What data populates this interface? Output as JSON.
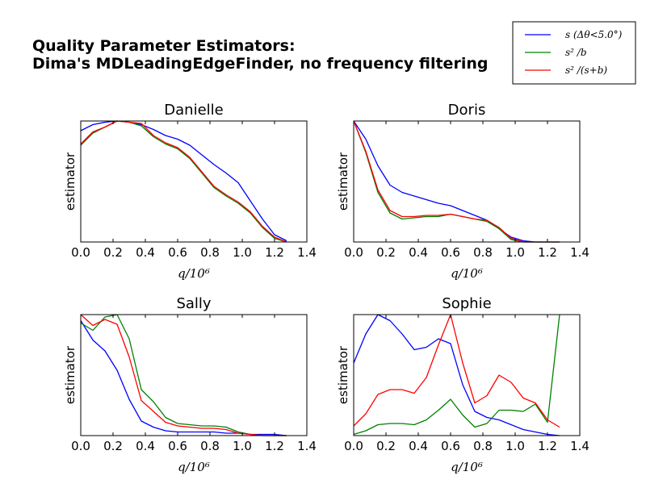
{
  "figure": {
    "title_lines": [
      "Quality Parameter Estimators:",
      "Dima's MDLeadingEdgeFinder, no frequency filtering"
    ]
  },
  "legend": {
    "placement": "top-right",
    "entries": [
      {
        "label": "s (Δθ<5.0°)",
        "color": "#0000ff"
      },
      {
        "label": "s² /b",
        "color": "#008000"
      },
      {
        "label": "s² /(s+b)",
        "color": "#ff0000"
      }
    ]
  },
  "chart_data": [
    {
      "type": "line",
      "title": "Danielle",
      "xlabel": "q/10⁶",
      "ylabel": "estimator",
      "xlim": [
        0.0,
        1.4
      ],
      "ylim": [
        0.0,
        1.0
      ],
      "xticks": [
        "0.0",
        "0.2",
        "0.4",
        "0.6",
        "0.8",
        "1.0",
        "1.2",
        "1.4"
      ],
      "yticks_visible": false,
      "series": [
        {
          "color": "#0000ff",
          "x": [
            0.0,
            0.075,
            0.15,
            0.225,
            0.3,
            0.375,
            0.45,
            0.525,
            0.6,
            0.675,
            0.75,
            0.825,
            0.9,
            0.975,
            1.05,
            1.125,
            1.2,
            1.275
          ],
          "y": [
            0.92,
            0.97,
            0.99,
            1.0,
            0.99,
            0.97,
            0.93,
            0.88,
            0.85,
            0.8,
            0.72,
            0.64,
            0.57,
            0.49,
            0.34,
            0.19,
            0.06,
            0.01
          ]
        },
        {
          "color": "#008000",
          "x": [
            0.0,
            0.075,
            0.15,
            0.225,
            0.3,
            0.375,
            0.45,
            0.525,
            0.6,
            0.675,
            0.75,
            0.825,
            0.9,
            0.975,
            1.05,
            1.125,
            1.2,
            1.275
          ],
          "y": [
            0.8,
            0.9,
            0.95,
            1.0,
            0.99,
            0.96,
            0.87,
            0.81,
            0.77,
            0.69,
            0.57,
            0.45,
            0.38,
            0.32,
            0.24,
            0.12,
            0.03,
            0.0
          ]
        },
        {
          "color": "#ff0000",
          "x": [
            0.0,
            0.075,
            0.15,
            0.225,
            0.3,
            0.375,
            0.45,
            0.525,
            0.6,
            0.675,
            0.75,
            0.825,
            0.9,
            0.975,
            1.05,
            1.125,
            1.2,
            1.275
          ],
          "y": [
            0.81,
            0.91,
            0.95,
            1.0,
            0.99,
            0.98,
            0.88,
            0.82,
            0.78,
            0.7,
            0.58,
            0.46,
            0.39,
            0.33,
            0.25,
            0.13,
            0.04,
            0.0
          ]
        }
      ]
    },
    {
      "type": "line",
      "title": "Doris",
      "xlabel": "q/10⁶",
      "ylabel": "estimator",
      "xlim": [
        0.0,
        1.4
      ],
      "ylim": [
        0.0,
        1.0
      ],
      "xticks": [
        "0.0",
        "0.2",
        "0.4",
        "0.6",
        "0.8",
        "1.0",
        "1.2",
        "1.4"
      ],
      "yticks_visible": false,
      "series": [
        {
          "color": "#0000ff",
          "x": [
            0.0,
            0.075,
            0.15,
            0.225,
            0.3,
            0.375,
            0.45,
            0.525,
            0.6,
            0.675,
            0.75,
            0.825,
            0.9,
            0.975,
            1.05,
            1.125,
            1.2,
            1.275
          ],
          "y": [
            1.0,
            0.85,
            0.63,
            0.47,
            0.41,
            0.38,
            0.35,
            0.32,
            0.3,
            0.26,
            0.22,
            0.18,
            0.11,
            0.04,
            0.01,
            0.0,
            0.0,
            0.0
          ]
        },
        {
          "color": "#008000",
          "x": [
            0.0,
            0.075,
            0.15,
            0.225,
            0.3,
            0.375,
            0.45,
            0.525,
            0.6,
            0.675,
            0.75,
            0.825,
            0.9,
            0.975,
            1.05,
            1.125,
            1.2,
            1.275
          ],
          "y": [
            1.0,
            0.74,
            0.41,
            0.24,
            0.19,
            0.2,
            0.21,
            0.21,
            0.23,
            0.21,
            0.19,
            0.17,
            0.11,
            0.02,
            0.0,
            0.0,
            0.0,
            0.0
          ]
        },
        {
          "color": "#ff0000",
          "x": [
            0.0,
            0.075,
            0.15,
            0.225,
            0.3,
            0.375,
            0.45,
            0.525,
            0.6,
            0.675,
            0.75,
            0.825,
            0.9,
            0.975,
            1.05,
            1.125,
            1.2,
            1.275
          ],
          "y": [
            1.0,
            0.75,
            0.43,
            0.26,
            0.21,
            0.21,
            0.22,
            0.22,
            0.23,
            0.21,
            0.19,
            0.18,
            0.12,
            0.03,
            0.0,
            0.0,
            0.0,
            0.0
          ]
        }
      ]
    },
    {
      "type": "line",
      "title": "Sally",
      "xlabel": "q/10⁶",
      "ylabel": "estimator",
      "xlim": [
        0.0,
        1.4
      ],
      "ylim": [
        0.0,
        1.0
      ],
      "xticks": [
        "0.0",
        "0.2",
        "0.4",
        "0.6",
        "0.8",
        "1.0",
        "1.2",
        "1.4"
      ],
      "yticks_visible": false,
      "series": [
        {
          "color": "#0000ff",
          "x": [
            0.0,
            0.075,
            0.15,
            0.225,
            0.3,
            0.375,
            0.45,
            0.525,
            0.6,
            0.675,
            0.75,
            0.825,
            0.9,
            0.975,
            1.05,
            1.125,
            1.2,
            1.275
          ],
          "y": [
            0.95,
            0.79,
            0.7,
            0.54,
            0.3,
            0.12,
            0.07,
            0.04,
            0.03,
            0.03,
            0.03,
            0.03,
            0.02,
            0.02,
            0.01,
            0.01,
            0.01,
            0.0
          ]
        },
        {
          "color": "#008000",
          "x": [
            0.0,
            0.075,
            0.15,
            0.225,
            0.3,
            0.375,
            0.45,
            0.525,
            0.6,
            0.675,
            0.75,
            0.825,
            0.9,
            0.975,
            1.05,
            1.125,
            1.2,
            1.275
          ],
          "y": [
            0.93,
            0.87,
            0.98,
            1.0,
            0.8,
            0.38,
            0.28,
            0.15,
            0.1,
            0.09,
            0.08,
            0.08,
            0.07,
            0.03,
            0.01,
            0.0,
            0.0,
            0.0
          ]
        },
        {
          "color": "#ff0000",
          "x": [
            0.0,
            0.075,
            0.15,
            0.225,
            0.3,
            0.375,
            0.45,
            0.525,
            0.6,
            0.675,
            0.75,
            0.825,
            0.9,
            0.975,
            1.05,
            1.125,
            1.2,
            1.275
          ],
          "y": [
            1.0,
            0.91,
            0.96,
            0.92,
            0.65,
            0.29,
            0.2,
            0.11,
            0.08,
            0.07,
            0.06,
            0.06,
            0.05,
            0.02,
            0.01,
            0.0,
            0.0,
            0.0
          ]
        }
      ]
    },
    {
      "type": "line",
      "title": "Sophie",
      "xlabel": "q/10⁶",
      "ylabel": "estimator",
      "xlim": [
        0.0,
        1.4
      ],
      "ylim": [
        0.0,
        1.0
      ],
      "xticks": [
        "0.0",
        "0.2",
        "0.4",
        "0.6",
        "0.8",
        "1.0",
        "1.2",
        "1.4"
      ],
      "yticks_visible": false,
      "series": [
        {
          "color": "#0000ff",
          "x": [
            0.0,
            0.075,
            0.15,
            0.225,
            0.3,
            0.375,
            0.45,
            0.525,
            0.6,
            0.675,
            0.75,
            0.825,
            0.9,
            0.975,
            1.05,
            1.125,
            1.2,
            1.275
          ],
          "y": [
            0.6,
            0.84,
            1.0,
            0.95,
            0.84,
            0.71,
            0.73,
            0.8,
            0.76,
            0.42,
            0.2,
            0.15,
            0.13,
            0.09,
            0.05,
            0.03,
            0.01,
            0.0
          ]
        },
        {
          "color": "#008000",
          "x": [
            0.0,
            0.075,
            0.15,
            0.225,
            0.3,
            0.375,
            0.45,
            0.525,
            0.6,
            0.675,
            0.75,
            0.825,
            0.9,
            0.975,
            1.05,
            1.125,
            1.2,
            1.275
          ],
          "y": [
            0.01,
            0.04,
            0.09,
            0.1,
            0.1,
            0.09,
            0.13,
            0.21,
            0.3,
            0.17,
            0.07,
            0.1,
            0.21,
            0.21,
            0.2,
            0.26,
            0.11,
            1.0
          ]
        },
        {
          "color": "#ff0000",
          "x": [
            0.0,
            0.075,
            0.15,
            0.225,
            0.3,
            0.375,
            0.45,
            0.525,
            0.6,
            0.675,
            0.75,
            0.825,
            0.9,
            0.975,
            1.05,
            1.125,
            1.2,
            1.275
          ],
          "y": [
            0.08,
            0.18,
            0.34,
            0.38,
            0.38,
            0.35,
            0.48,
            0.75,
            1.0,
            0.6,
            0.27,
            0.33,
            0.5,
            0.44,
            0.31,
            0.27,
            0.13,
            0.07
          ]
        }
      ]
    }
  ]
}
